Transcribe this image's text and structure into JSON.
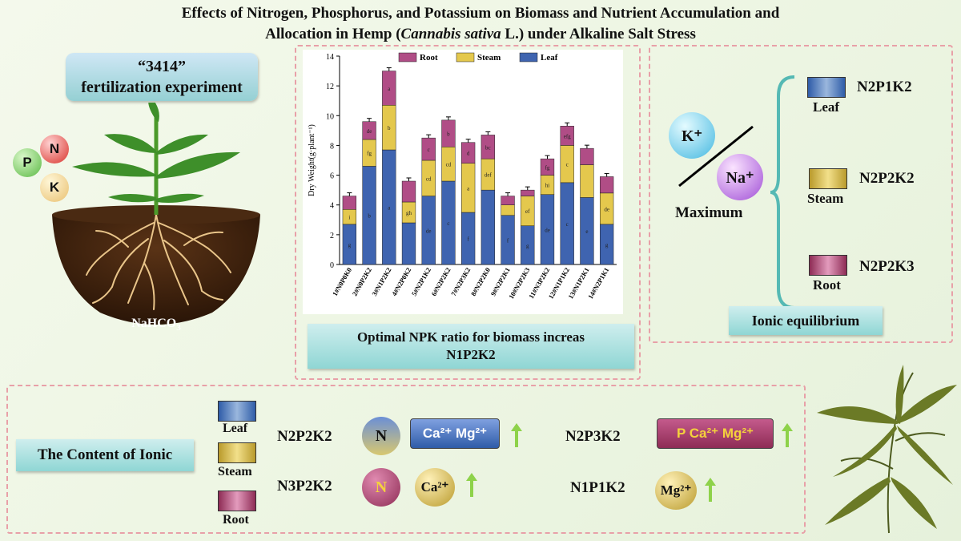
{
  "title": {
    "line1": "Effects of Nitrogen, Phosphorus, and Potassium on Biomass and Nutrient Accumulation and",
    "line2_pre": "Allocation in Hemp (",
    "line2_italic": "Cannabis sativa",
    "line2_post": " L.) under Alkaline Salt Stress"
  },
  "left": {
    "experiment_line1": "“3414”",
    "experiment_line2": "fertilization experiment",
    "nutrient_p": "P",
    "nutrient_n": "N",
    "nutrient_k": "K",
    "soil_label": "NaHCO",
    "soil_sub": "3"
  },
  "middle": {
    "caption_line1": "Optimal NPK ratio for biomass increas",
    "caption_line2": "N1P2K2"
  },
  "chart_data": {
    "type": "bar",
    "stacked": true,
    "ylabel": "Dry Weight(g·plant⁻¹)",
    "ylim": [
      0,
      14
    ],
    "yticks": [
      "0",
      "2",
      "4",
      "6",
      "8",
      "10",
      "12",
      "14"
    ],
    "categories": [
      "1#N0P0K0",
      "2#N0P2K2",
      "3#N1P2K2",
      "4#N2P0K2",
      "5#N2P1K2",
      "6#N2P2K2",
      "7#N2P3K2",
      "8#N2P2K0",
      "9#N2P2K1",
      "10#N2P2K3",
      "11#N3P2K2",
      "12#N1P1K2",
      "13#N1P2K1",
      "14#N2P1K1"
    ],
    "legend": [
      "Root",
      "Steam",
      "Leaf"
    ],
    "series": [
      {
        "name": "Leaf",
        "color": "#3f64b0",
        "values": [
          2.7,
          6.6,
          7.7,
          2.8,
          4.6,
          5.6,
          3.5,
          5.0,
          3.3,
          2.6,
          4.7,
          5.5,
          4.5,
          2.7
        ],
        "labels": [
          "g",
          "b",
          "a",
          "",
          "de",
          "c",
          "f",
          "",
          "f",
          "g",
          "de",
          "c",
          "e",
          "g"
        ]
      },
      {
        "name": "Steam",
        "color": "#e4c84d",
        "values": [
          1.0,
          1.8,
          3.0,
          1.4,
          2.4,
          2.3,
          3.3,
          2.1,
          0.7,
          2.0,
          1.3,
          2.5,
          2.2,
          2.1
        ],
        "labels": [
          "i",
          "fg",
          "b",
          "gh",
          "cd",
          "cd",
          "a",
          "def",
          "",
          "ef",
          "hi",
          "c",
          "",
          "de"
        ]
      },
      {
        "name": "Root",
        "color": "#b04d86",
        "values": [
          0.9,
          1.2,
          2.3,
          1.4,
          1.5,
          1.8,
          1.4,
          1.6,
          0.6,
          0.4,
          1.1,
          1.3,
          1.1,
          1.1
        ],
        "labels": [
          "",
          "de",
          "a",
          "",
          "c",
          "b",
          "d",
          "bc",
          "",
          "",
          "fg",
          "efg",
          "",
          ""
        ]
      }
    ]
  },
  "right": {
    "k_ion": "K⁺",
    "na_ion": "Na⁺",
    "maximum": "Maximum",
    "leaf_label": "Leaf",
    "leaf_treatment": "N2P1K2",
    "steam_label": "Steam",
    "steam_treatment": "N2P2K2",
    "root_label": "Root",
    "root_treatment": "N2P2K3",
    "caption": "Ionic equilibrium"
  },
  "bottom": {
    "title": "The Content of Ionic",
    "legend_leaf": "Leaf",
    "legend_steam": "Steam",
    "legend_root": "Root",
    "row1_treatment": "N2P2K2",
    "row1_ball": "N",
    "row1_pill": "Ca²⁺ Mg²⁺",
    "row2_treatment": "N3P2K2",
    "row2_ball": "N",
    "row2_ball2": "Ca²⁺",
    "row3_treatment": "N2P3K2",
    "row3_pill": "P  Ca²⁺ Mg²⁺",
    "row4_treatment": "N1P1K2",
    "row4_ball": "Mg²⁺",
    "colors": {
      "arrow": "#8ed24a",
      "leaf": "#3f64b0",
      "steam": "#e4c84d",
      "root": "#b04d86"
    }
  }
}
